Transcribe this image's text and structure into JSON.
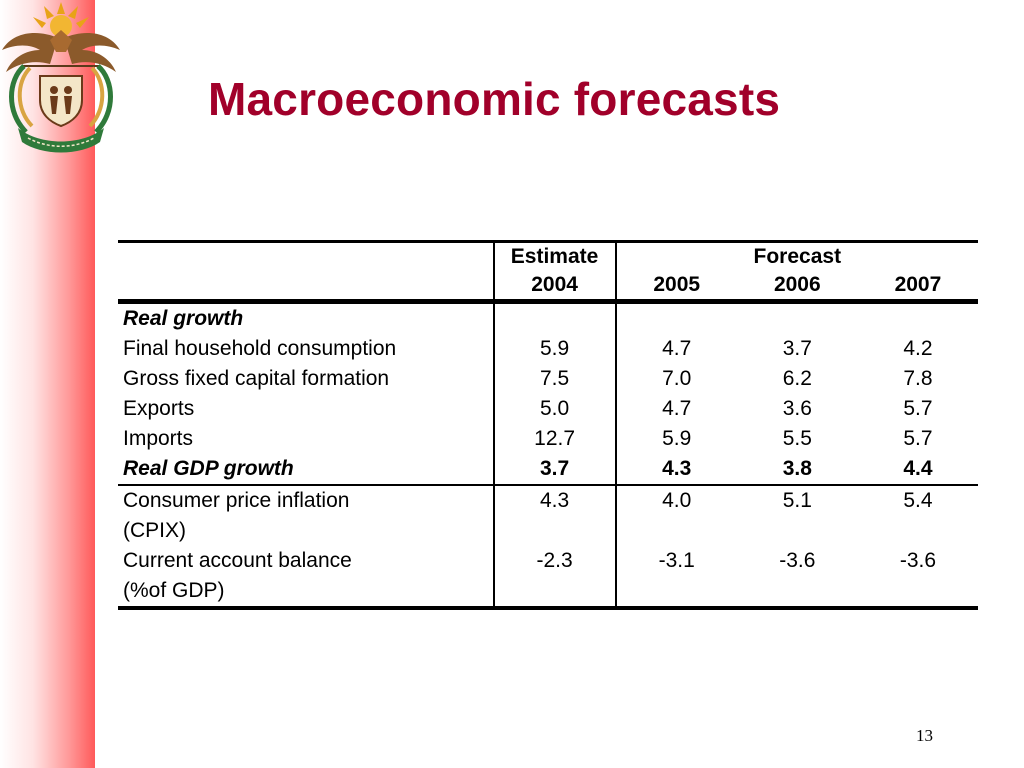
{
  "slide": {
    "title": "Macroeconomic forecasts",
    "page_number": "13",
    "emblem_motto": "!KE E: /XARRA //KE"
  },
  "table": {
    "header": {
      "group_estimate": "Estimate",
      "group_forecast": "Forecast",
      "years": [
        "2004",
        "2005",
        "2006",
        "2007"
      ]
    },
    "sections": {
      "real_growth": "Real growth"
    },
    "rows": [
      {
        "label": "Final household consumption",
        "values": [
          "5.9",
          "4.7",
          "3.7",
          "4.2"
        ]
      },
      {
        "label": "Gross fixed capital formation",
        "values": [
          "7.5",
          "7.0",
          "6.2",
          "7.8"
        ]
      },
      {
        "label": "Exports",
        "values": [
          "5.0",
          "4.7",
          "3.6",
          "5.7"
        ]
      },
      {
        "label": "Imports",
        "values": [
          "12.7",
          "5.9",
          "5.5",
          "5.7"
        ]
      },
      {
        "label": "Real GDP growth",
        "values": [
          "3.7",
          "4.3",
          "3.8",
          "4.4"
        ]
      },
      {
        "label": "Consumer price inflation",
        "label_line2": "(CPIX)",
        "values": [
          "4.3",
          "4.0",
          "5.1",
          "5.4"
        ]
      },
      {
        "label": "Current account balance",
        "label_line2": "(%of GDP)",
        "values": [
          "-2.3",
          "-3.1",
          "-3.6",
          "-3.6"
        ]
      }
    ]
  },
  "colors": {
    "title": "#a1002a",
    "side_bar_edge": "#ff5a5a"
  },
  "icons": {
    "emblem": "coat-of-arms-icon"
  }
}
